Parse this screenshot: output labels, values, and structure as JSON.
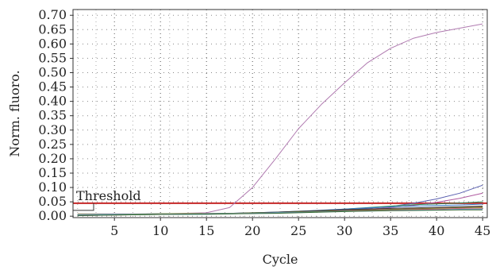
{
  "chart_data": {
    "type": "line",
    "xlabel": "Cycle",
    "ylabel": "Norm. fluoro.",
    "xlim": [
      0.5,
      45.5
    ],
    "ylim": [
      -0.005,
      0.72
    ],
    "x_ticks": [
      5,
      10,
      15,
      20,
      25,
      30,
      35,
      40,
      45
    ],
    "y_ticks": [
      0.0,
      0.05,
      0.1,
      0.15,
      0.2,
      0.25,
      0.3,
      0.35,
      0.4,
      0.45,
      0.5,
      0.55,
      0.6,
      0.65,
      0.7
    ],
    "y_tick_labels": [
      "0.00",
      "0.05",
      "0.10",
      "0.15",
      "0.20",
      "0.25",
      "0.30",
      "0.35",
      "0.40",
      "0.45",
      "0.50",
      "0.55",
      "0.60",
      "0.65",
      "0.70"
    ],
    "x_tick_labels": [
      "5",
      "10",
      "15",
      "20",
      "25",
      "30",
      "35",
      "40",
      "45"
    ],
    "grid": "dotted",
    "threshold": {
      "label": "Threshold",
      "value": 0.045,
      "color": "#c62828"
    },
    "x": [
      1,
      5,
      10,
      15,
      17.5,
      20,
      22.5,
      25,
      27.5,
      30,
      32.5,
      35,
      37.5,
      40,
      42.5,
      45
    ],
    "series": [
      {
        "color": "#b07ab0",
        "values": [
          0.008,
          0.008,
          0.008,
          0.012,
          0.03,
          0.1,
          0.2,
          0.305,
          0.39,
          0.465,
          0.535,
          0.585,
          0.62,
          0.64,
          0.655,
          0.67
        ]
      },
      {
        "color": "#5a5fb0",
        "values": [
          0.004,
          0.006,
          0.008,
          0.008,
          0.009,
          0.01,
          0.012,
          0.015,
          0.018,
          0.022,
          0.027,
          0.034,
          0.045,
          0.06,
          0.08,
          0.108
        ]
      },
      {
        "color": "#b05aa0",
        "values": [
          0.005,
          0.006,
          0.007,
          0.008,
          0.009,
          0.01,
          0.012,
          0.014,
          0.017,
          0.02,
          0.024,
          0.03,
          0.038,
          0.048,
          0.062,
          0.08
        ]
      },
      {
        "color": "#2e8b57",
        "values": [
          0.003,
          0.005,
          0.007,
          0.008,
          0.009,
          0.011,
          0.013,
          0.016,
          0.02,
          0.025,
          0.03,
          0.035,
          0.04,
          0.043,
          0.046,
          0.05
        ]
      },
      {
        "color": "#3a7bc8",
        "values": [
          0.006,
          0.007,
          0.008,
          0.009,
          0.01,
          0.012,
          0.014,
          0.017,
          0.021,
          0.025,
          0.029,
          0.032,
          0.035,
          0.037,
          0.039,
          0.042
        ]
      },
      {
        "color": "#7a4a2a",
        "values": [
          0.002,
          0.004,
          0.006,
          0.008,
          0.009,
          0.011,
          0.013,
          0.015,
          0.018,
          0.02,
          0.022,
          0.024,
          0.026,
          0.028,
          0.03,
          0.032
        ]
      },
      {
        "color": "#3c3c3c",
        "values": [
          0.005,
          0.006,
          0.008,
          0.009,
          0.01,
          0.012,
          0.014,
          0.017,
          0.02,
          0.023,
          0.025,
          0.027,
          0.029,
          0.031,
          0.033,
          0.035
        ]
      },
      {
        "color": "#2aa0a0",
        "values": [
          0.004,
          0.005,
          0.006,
          0.007,
          0.008,
          0.01,
          0.012,
          0.014,
          0.016,
          0.018,
          0.02,
          0.022,
          0.024,
          0.026,
          0.028,
          0.03
        ]
      },
      {
        "color": "#88aa22",
        "values": [
          0.007,
          0.007,
          0.008,
          0.009,
          0.01,
          0.011,
          0.012,
          0.014,
          0.016,
          0.018,
          0.02,
          0.022,
          0.024,
          0.026,
          0.028,
          0.03
        ]
      },
      {
        "color": "#cc6677",
        "values": [
          0.003,
          0.005,
          0.007,
          0.008,
          0.009,
          0.01,
          0.011,
          0.013,
          0.015,
          0.017,
          0.019,
          0.021,
          0.023,
          0.025,
          0.027,
          0.028
        ]
      },
      {
        "color": "#6a9bd0",
        "values": [
          0.005,
          0.006,
          0.007,
          0.008,
          0.009,
          0.01,
          0.012,
          0.013,
          0.015,
          0.017,
          0.018,
          0.02,
          0.021,
          0.022,
          0.024,
          0.025
        ]
      },
      {
        "color": "#336633",
        "values": [
          0.002,
          0.004,
          0.006,
          0.007,
          0.008,
          0.009,
          0.01,
          0.012,
          0.014,
          0.016,
          0.018,
          0.019,
          0.02,
          0.021,
          0.022,
          0.022
        ]
      }
    ]
  }
}
